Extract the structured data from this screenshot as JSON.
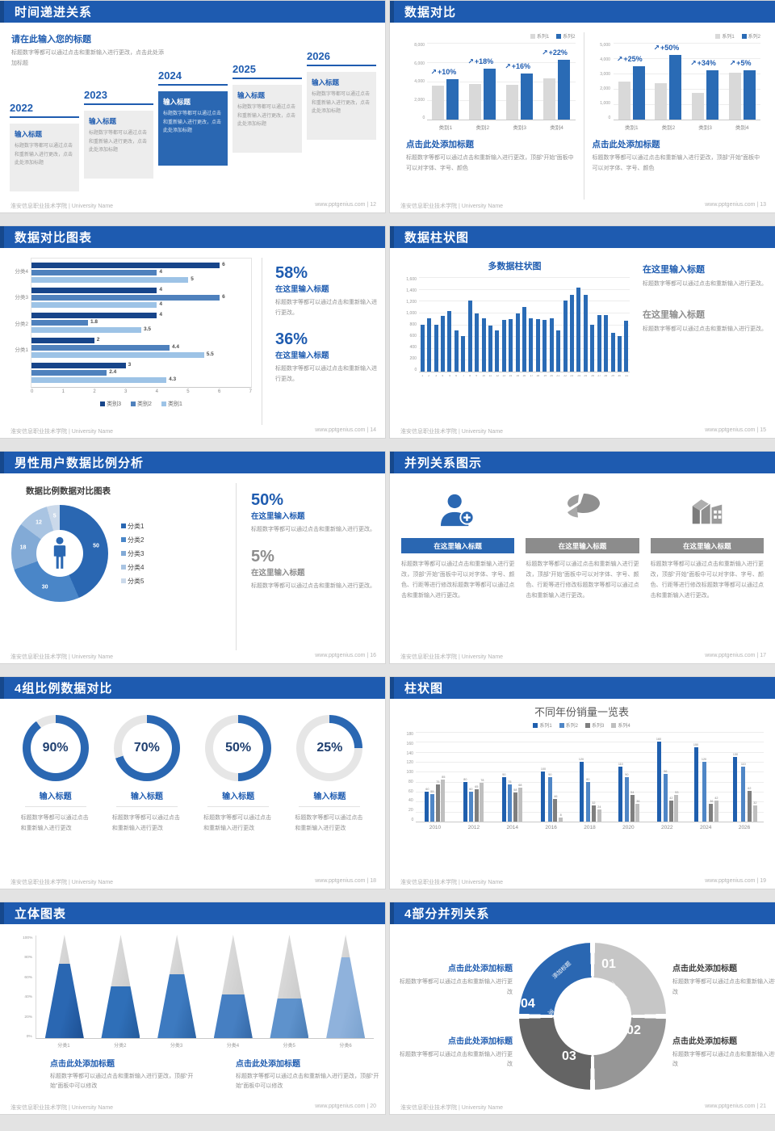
{
  "footer": {
    "left": "淮安信息职业技术学院 | University Name",
    "site": "www.pptgenius.com",
    "sep": " | "
  },
  "icons": {
    "up_arrow": "↗"
  },
  "accent": "#1f5cb0",
  "slides": {
    "s12": {
      "title": "时间递进关系",
      "page": "12",
      "intro_title": "请在此输入您的标题",
      "intro_body": "标题数字等都可以通过点击和重新输入进行更改，点击此处添加标题",
      "milestones": [
        {
          "year": "2022",
          "title": "输入标题",
          "body": "标题数字等都可以通过点击和重新输入进行更改，点击此处添加标题",
          "highlight": false
        },
        {
          "year": "2023",
          "title": "输入标题",
          "body": "标题数字等都可以通过点击和重新输入进行更改，点击此处添加标题",
          "highlight": false
        },
        {
          "year": "2024",
          "title": "输入标题",
          "body": "标题数字等都可以通过点击和重新输入进行更改，点击此处添加标题",
          "highlight": true
        },
        {
          "year": "2025",
          "title": "输入标题",
          "body": "标题数字等都可以通过点击和重新输入进行更改，点击此处添加标题",
          "highlight": false
        },
        {
          "year": "2026",
          "title": "输入标题",
          "body": "标题数字等都可以通过点击和重新输入进行更改，点击此处添加标题",
          "highlight": false
        }
      ]
    },
    "s13": {
      "title": "数据对比",
      "page": "13",
      "charts": [
        {
          "type": "bar",
          "legend": [
            "系列1",
            "系列2"
          ],
          "yticks": [
            "8,000",
            "6,000",
            "4,000",
            "2,000",
            "0"
          ],
          "ymax": 8000,
          "categories": [
            "类别1",
            "类别2",
            "类别3",
            "类别4"
          ],
          "series": [
            {
              "name": "系列1",
              "color": "#d9d9d9",
              "values": [
                3500,
                3700,
                3600,
                4300
              ]
            },
            {
              "name": "系列2",
              "color": "#2a6bb5",
              "values": [
                4200,
                5300,
                4800,
                6200
              ]
            }
          ],
          "labels": [
            "+10%",
            "+18%",
            "+16%",
            "+22%"
          ],
          "heading": "点击此处添加标题",
          "body": "标题数字等都可以通过点击和重新输入进行更改，顶部“开始”面板中可以对字体、字号、颜色"
        },
        {
          "type": "bar",
          "legend": [
            "系列1",
            "系列2"
          ],
          "yticks": [
            "5,000",
            "4,000",
            "3,000",
            "2,000",
            "1,000",
            "0"
          ],
          "ymax": 5000,
          "categories": [
            "类别1",
            "类别2",
            "类别3",
            "类别4"
          ],
          "series": [
            {
              "name": "系列1",
              "color": "#d9d9d9",
              "values": [
                2500,
                2350,
                1750,
                3050
              ]
            },
            {
              "name": "系列2",
              "color": "#2a6bb5",
              "values": [
                3500,
                4200,
                3200,
                3200
              ]
            }
          ],
          "labels": [
            "+25%",
            "+50%",
            "+34%",
            "+5%"
          ],
          "heading": "点击此处添加标题",
          "body": "标题数字等都可以通过点击和重新输入进行更改，顶部“开始”面板中可以对字体、字号、颜色"
        }
      ]
    },
    "s14": {
      "title": "数据对比图表",
      "page": "14",
      "type": "bar-horizontal",
      "xticks": [
        "0",
        "1",
        "2",
        "3",
        "4",
        "5",
        "6",
        "7"
      ],
      "xmax": 7,
      "colors": [
        "#17458a",
        "#4f81bd",
        "#9dc3e6"
      ],
      "groups": [
        {
          "label": "分类4",
          "values": [
            6,
            4,
            5
          ]
        },
        {
          "label": "分类3",
          "values": [
            4,
            6,
            4
          ]
        },
        {
          "label": "分类2",
          "values": [
            4,
            1.8,
            3.5
          ]
        },
        {
          "label": "分类1",
          "values": [
            2,
            4.4,
            5.5
          ]
        },
        {
          "label": "",
          "values": [
            3,
            2.4,
            4.3
          ]
        }
      ],
      "legend": [
        "类别3",
        "类别2",
        "类别1"
      ],
      "stats": [
        {
          "pct": "58%",
          "title": "在这里输入标题",
          "body": "标题数字等都可以通过点击和重新输入进行更改。",
          "accent": true
        },
        {
          "pct": "36%",
          "title": "在这里输入标题",
          "body": "标题数字等都可以通过点击和重新输入进行更改。",
          "accent": true
        }
      ]
    },
    "s15": {
      "title": "数据柱状图",
      "page": "15",
      "chart_title": "多数据柱状图",
      "type": "bar",
      "yticks": [
        "1,600",
        "1,400",
        "1,200",
        "1,000",
        "800",
        "600",
        "400",
        "200",
        "0"
      ],
      "ymax": 1600,
      "bar_color": "#2a6bb5",
      "values": [
        800,
        900,
        800,
        950,
        1020,
        700,
        600,
        1200,
        980,
        900,
        780,
        700,
        880,
        890,
        990,
        1100,
        900,
        890,
        870,
        900,
        700,
        1200,
        1300,
        1420,
        1300,
        800,
        960,
        960,
        660,
        600,
        860
      ],
      "stats": [
        {
          "title": "在这里输入标题",
          "body": "标题数字等都可以通过点击和重新输入进行更改。",
          "accent": true
        },
        {
          "title": "在这里输入标题",
          "body": "标题数字等都可以通过点击和重新输入进行更改。",
          "accent": false
        }
      ]
    },
    "s16": {
      "title": "男性用户数据比例分析",
      "page": "16",
      "chart_title": "数据比例数据对比图表",
      "type": "pie",
      "slices": [
        {
          "label": "分类1",
          "value": 50
        },
        {
          "label": "分类2",
          "value": 30
        },
        {
          "label": "分类3",
          "value": 18
        },
        {
          "label": "分类4",
          "value": 12
        },
        {
          "label": "分类5",
          "value": 5
        }
      ],
      "slice_colors": [
        "#2a67b2",
        "#4a86c8",
        "#82aad6",
        "#a9c4e2",
        "#cbd9ea"
      ],
      "stats": [
        {
          "pct": "50%",
          "title": "在这里输入标题",
          "body": "标题数字等都可以通过点击和重新输入进行更改。",
          "accent": true
        },
        {
          "pct": "5%",
          "title": "在这里输入标题",
          "body": "标题数字等都可以通过点击和重新输入进行更改。",
          "accent": false
        }
      ]
    },
    "s17": {
      "title": "并列关系图示",
      "page": "17",
      "items": [
        {
          "icon": "nurse-plus-icon",
          "heading": "在这里输入标题",
          "accent": true,
          "body": "标题数字等都可以通过点击和重新输入进行更改，顶部“开始”面板中可以对字体、字号、颜色、行距等进行修改标题数字等都可以通过点击和重新输入进行更改。"
        },
        {
          "icon": "pie-3d-icon",
          "heading": "在这里输入标题",
          "accent": false,
          "body": "标题数字等都可以通过点击和重新输入进行更改，顶部“开始”面板中可以对字体、字号、颜色、行距等进行修改标题数字等都可以通过点击和重新输入进行更改。"
        },
        {
          "icon": "building-icon",
          "heading": "在这里输入标题",
          "accent": false,
          "body": "标题数字等都可以通过点击和重新输入进行更改，顶部“开始”面板中可以对字体、字号、颜色、行距等进行修改标题数字等都可以通过点击和重新输入进行更改。"
        }
      ]
    },
    "s18": {
      "title": "4组比例数据对比",
      "page": "18",
      "accent": "#2a67b2",
      "gauges": [
        {
          "pct": 90,
          "label": "90%",
          "title": "输入标题",
          "body": "标题数字等都可以通过点击和重新输入进行更改"
        },
        {
          "pct": 70,
          "label": "70%",
          "title": "输入标题",
          "body": "标题数字等都可以通过点击和重新输入进行更改"
        },
        {
          "pct": 50,
          "label": "50%",
          "title": "输入标题",
          "body": "标题数字等都可以通过点击和重新输入进行更改"
        },
        {
          "pct": 25,
          "label": "25%",
          "title": "输入标题",
          "body": "标题数字等都可以通过点击和重新输入进行更改"
        }
      ]
    },
    "s19": {
      "title": "柱状图",
      "page": "19",
      "chart_title": "不同年份销量一览表",
      "type": "bar",
      "yticks": [
        "180",
        "160",
        "140",
        "120",
        "100",
        "80",
        "60",
        "40",
        "20",
        "0"
      ],
      "ymax": 180,
      "categories": [
        "2010",
        "2012",
        "2014",
        "2016",
        "2018",
        "2020",
        "2022",
        "2024",
        "2026"
      ],
      "series": [
        {
          "name": "系列1",
          "color": "#1f5fae",
          "values": [
            60,
            80,
            90,
            100,
            120,
            110,
            160,
            150,
            130
          ]
        },
        {
          "name": "系列2",
          "color": "#4f86c6",
          "values": [
            55,
            60,
            75,
            90,
            80,
            90,
            96,
            120,
            110
          ]
        },
        {
          "name": "系列3",
          "color": "#7f7f7f",
          "values": [
            75,
            65,
            58,
            46,
            32,
            54,
            42,
            36,
            62
          ]
        },
        {
          "name": "系列4",
          "color": "#bfbfbf",
          "values": [
            85,
            78,
            68,
            8,
            24,
            36,
            53,
            42,
            32
          ]
        }
      ]
    },
    "s20": {
      "title": "立体图表",
      "page": "20",
      "type": "cone",
      "yticks": [
        "100%",
        "80%",
        "60%",
        "40%",
        "20%",
        "0%"
      ],
      "cones": [
        {
          "label": "分类1",
          "fill": 72,
          "color": "#2a67b2",
          "shade": "#1d4f92"
        },
        {
          "label": "分类2",
          "fill": 50,
          "color": "#2f6fb8",
          "shade": "#235a9b"
        },
        {
          "label": "分类3",
          "fill": 62,
          "color": "#3d7ac0",
          "shade": "#2c63a4"
        },
        {
          "label": "分类4",
          "fill": 42,
          "color": "#467fc2",
          "shade": "#3568a6"
        },
        {
          "label": "分类5",
          "fill": 38,
          "color": "#5e92cc",
          "shade": "#4a7cb4"
        },
        {
          "label": "分类6",
          "fill": 78,
          "color": "#8fb2dc",
          "shade": "#7aa2cf"
        }
      ],
      "blocks": [
        {
          "heading": "点击此处添加标题",
          "body": "标题数字等都可以通过点击和重新输入进行更改，顶部“开始”面板中可以修改"
        },
        {
          "heading": "点击此处添加标题",
          "body": "标题数字等都可以通过点击和重新输入进行更改，顶部“开始”面板中可以修改"
        }
      ]
    },
    "s21": {
      "title": "4部分并列关系",
      "page": "21",
      "segments": [
        {
          "num": "01",
          "label": "添加标题",
          "color": "#c6c6c6"
        },
        {
          "num": "02",
          "label": "添加标题",
          "color": "#969696"
        },
        {
          "num": "03",
          "label": "添加标题",
          "color": "#646464"
        },
        {
          "num": "04",
          "label": "添加标题",
          "color": "#2a67b2"
        }
      ],
      "blocks": [
        {
          "heading": "点击此处添加标题",
          "body": "标题数字等都可以通过点击和重新输入进行更改",
          "accent": true
        },
        {
          "heading": "点击此处添加标题",
          "body": "标题数字等都可以通过点击和重新输入进行更改",
          "accent": false
        },
        {
          "heading": "点击此处添加标题",
          "body": "标题数字等都可以通过点击和重新输入进行更改",
          "accent": true
        },
        {
          "heading": "点击此处添加标题",
          "body": "标题数字等都可以通过点击和重新输入进行更改",
          "accent": false
        }
      ]
    }
  }
}
